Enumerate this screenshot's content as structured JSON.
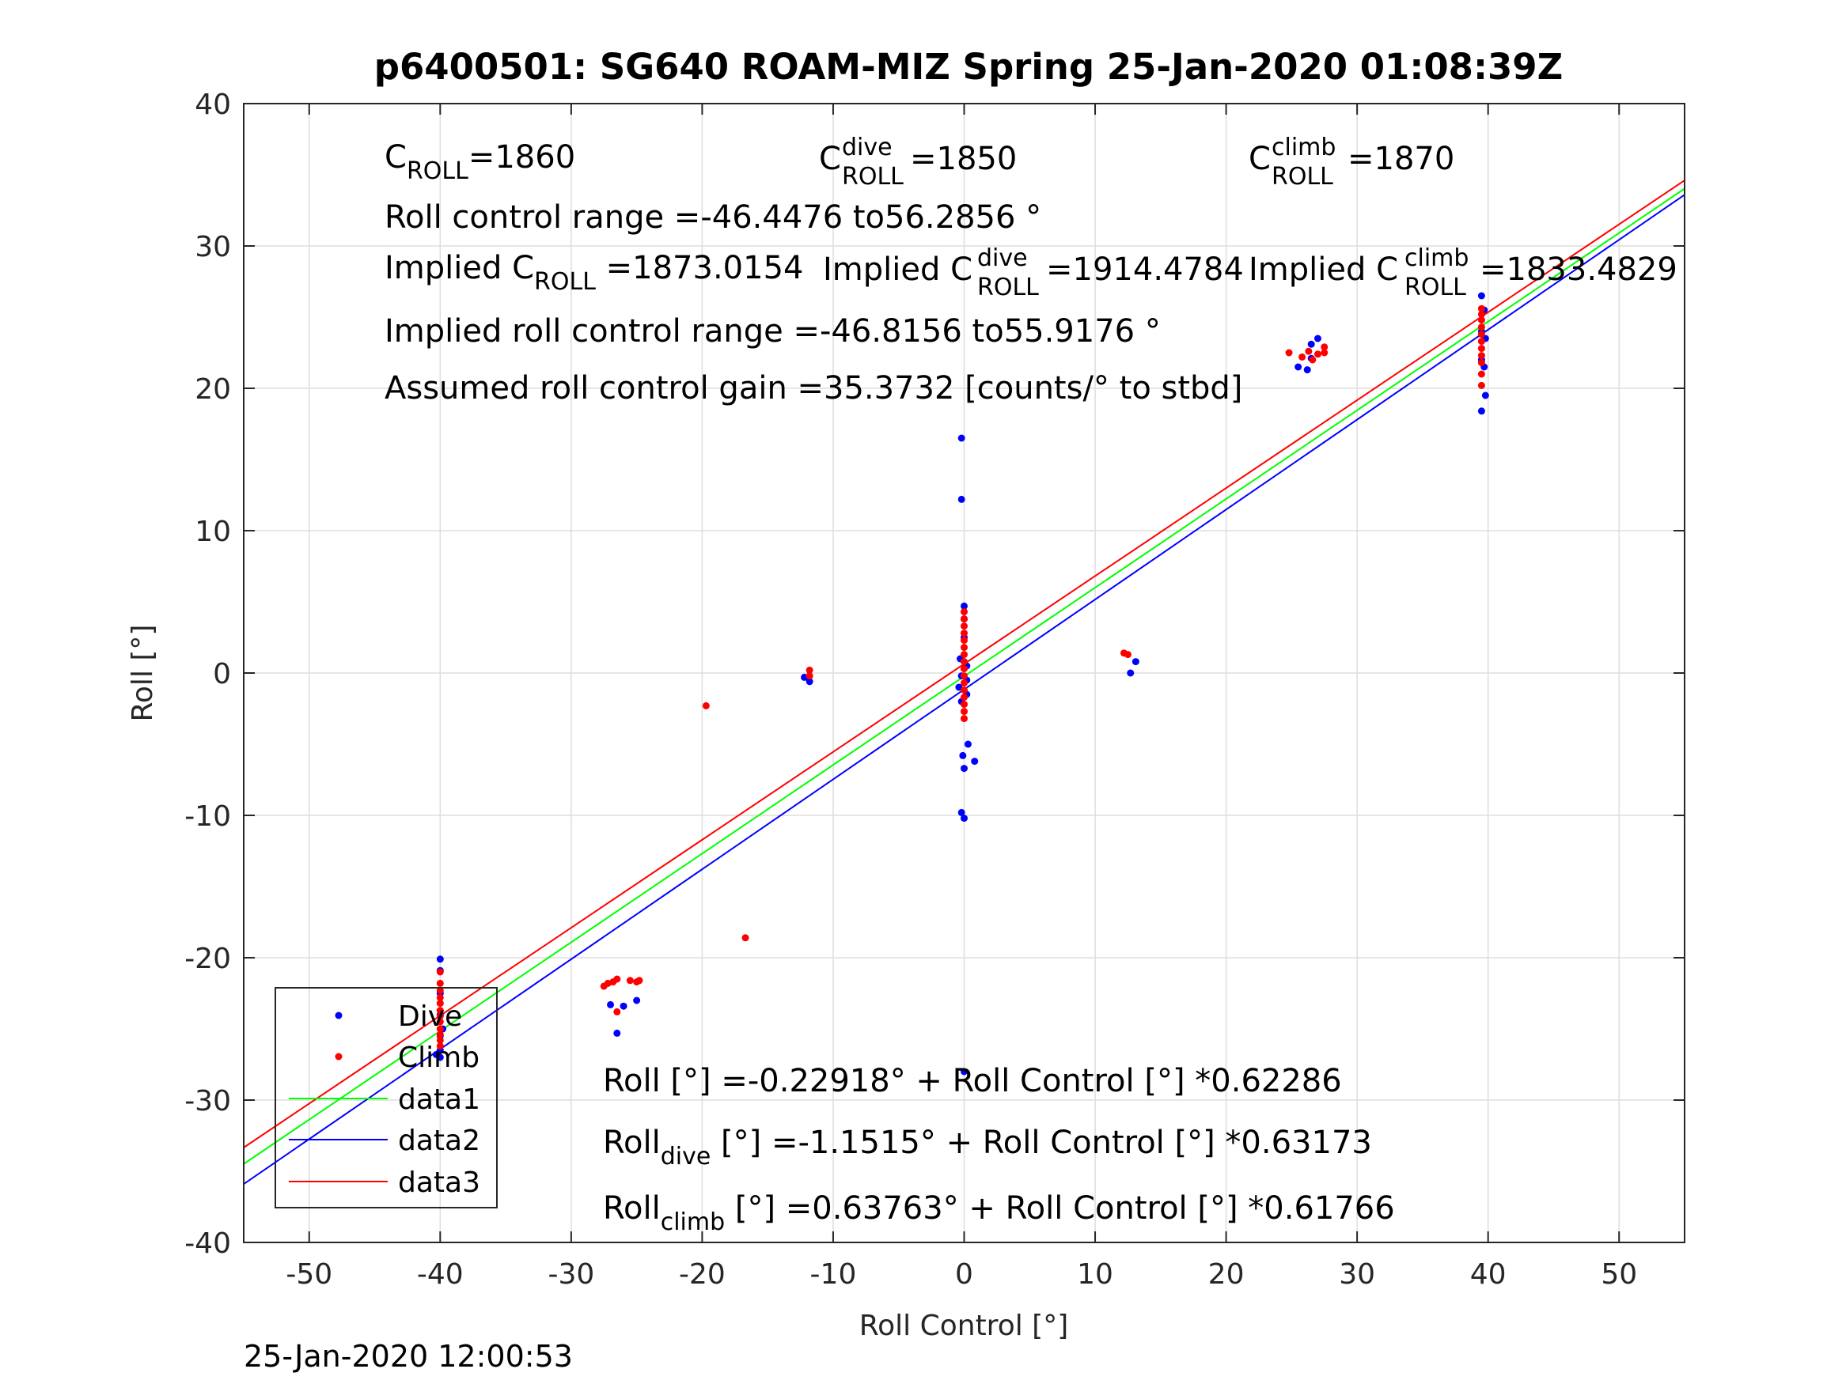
{
  "chart_data": {
    "type": "scatter",
    "title": "p6400501: SG640 ROAM-MIZ Spring 25-Jan-2020 01:08:39Z",
    "xlabel": "Roll Control [°]",
    "ylabel": "Roll [°]",
    "xlim": [
      -55,
      55
    ],
    "ylim": [
      -40,
      40
    ],
    "xticks": [
      -50,
      -40,
      -30,
      -20,
      -10,
      0,
      10,
      20,
      30,
      40,
      50
    ],
    "yticks": [
      -40,
      -30,
      -20,
      -10,
      0,
      10,
      20,
      30,
      40
    ],
    "grid": true,
    "legend_position": "bottom-left",
    "timestamp": "25-Jan-2020 12:00:53",
    "annotations": {
      "c_roll": {
        "base": "C",
        "sub": "ROLL",
        "value": "=1860"
      },
      "c_roll_dive": {
        "base": "C",
        "sup": "dive",
        "sub": "ROLL",
        "value": " =1850"
      },
      "c_roll_climb": {
        "base": "C",
        "sup": "climb",
        "sub": "ROLL",
        "value": " =1870"
      },
      "roll_control_range": "Roll control range =-46.4476 to56.2856 °",
      "implied_c_roll": {
        "prefix": "Implied C",
        "sub": "ROLL",
        "value": " =1873.0154"
      },
      "implied_c_roll_dive": {
        "prefix": "Implied C",
        "sup": "dive",
        "sub": "ROLL",
        "value": " =1914.4784"
      },
      "implied_c_roll_climb": {
        "prefix": "Implied C",
        "sup": "climb",
        "sub": "ROLL",
        "value": " =1833.4829"
      },
      "implied_range": "Implied roll control range =-46.8156 to55.9176 °",
      "gain": "Assumed roll control gain =35.3732 [counts/° to stbd]",
      "fit_all": "Roll [°] =-0.22918° + Roll Control [°] *0.62286",
      "fit_dive": {
        "prefix": "Roll",
        "sub": "dive",
        "rest": " [°] =-1.1515° + Roll Control [°] *0.63173"
      },
      "fit_climb": {
        "prefix": "Roll",
        "sub": "climb",
        "rest": " [°] =0.63763° + Roll Control [°] *0.61766"
      }
    },
    "series": [
      {
        "name": "Dive",
        "kind": "scatter",
        "color": "#0000ff",
        "points": [
          [
            -40,
            -20.1
          ],
          [
            -40,
            -20.9
          ],
          [
            -40,
            -22.5
          ],
          [
            -40,
            -24.0
          ],
          [
            -40,
            -25.5
          ],
          [
            -40,
            -26.5
          ],
          [
            -40,
            -27.0
          ],
          [
            -40.3,
            -26.8
          ],
          [
            -39.8,
            -25.0
          ],
          [
            -27,
            -23.3
          ],
          [
            -26.5,
            -25.3
          ],
          [
            -26,
            -23.4
          ],
          [
            -25,
            -23.0
          ],
          [
            -12.2,
            -0.3
          ],
          [
            -11.8,
            -0.6
          ],
          [
            -0.2,
            16.5
          ],
          [
            -0.2,
            12.2
          ],
          [
            0,
            4.7
          ],
          [
            0,
            3.8
          ],
          [
            0,
            2.5
          ],
          [
            -0.3,
            1.0
          ],
          [
            0.2,
            0.5
          ],
          [
            -0.2,
            -0.2
          ],
          [
            0.2,
            -0.5
          ],
          [
            -0.4,
            -1.0
          ],
          [
            0.2,
            -1.5
          ],
          [
            -0.2,
            -2.0
          ],
          [
            -0.1,
            -5.8
          ],
          [
            0.3,
            -5.0
          ],
          [
            0.8,
            -6.2
          ],
          [
            0,
            -6.7
          ],
          [
            -0.2,
            -9.8
          ],
          [
            0,
            -10.2
          ],
          [
            0,
            -28.0
          ],
          [
            12.7,
            0.0
          ],
          [
            13.1,
            0.8
          ],
          [
            25.5,
            21.5
          ],
          [
            26.2,
            21.3
          ],
          [
            26.5,
            22.1
          ],
          [
            26.5,
            23.1
          ],
          [
            27.0,
            23.5
          ],
          [
            39.5,
            26.5
          ],
          [
            39.7,
            25.5
          ],
          [
            39.5,
            24.0
          ],
          [
            39.8,
            23.5
          ],
          [
            39.5,
            22.0
          ],
          [
            39.7,
            21.5
          ],
          [
            39.8,
            19.5
          ],
          [
            39.5,
            18.4
          ]
        ]
      },
      {
        "name": "Climb",
        "kind": "scatter",
        "color": "#ff0000",
        "points": [
          [
            -40,
            -21.0
          ],
          [
            -40,
            -21.8
          ],
          [
            -40,
            -22.3
          ],
          [
            -40,
            -22.8
          ],
          [
            -40,
            -23.2
          ],
          [
            -40,
            -23.7
          ],
          [
            -40,
            -24.1
          ],
          [
            -40,
            -24.5
          ],
          [
            -40,
            -25.0
          ],
          [
            -40,
            -25.4
          ],
          [
            -40,
            -25.8
          ],
          [
            -40,
            -26.2
          ],
          [
            -27.5,
            -22.0
          ],
          [
            -27.2,
            -21.8
          ],
          [
            -26.8,
            -21.7
          ],
          [
            -26.5,
            -21.5
          ],
          [
            -26.5,
            -23.8
          ],
          [
            -25.5,
            -21.6
          ],
          [
            -25.0,
            -21.7
          ],
          [
            -24.8,
            -21.6
          ],
          [
            -19.7,
            -2.3
          ],
          [
            -16.7,
            -18.6
          ],
          [
            -11.8,
            0.2
          ],
          [
            -11.8,
            -0.2
          ],
          [
            0,
            4.3
          ],
          [
            0,
            3.8
          ],
          [
            0,
            3.3
          ],
          [
            0,
            2.8
          ],
          [
            0,
            2.3
          ],
          [
            0,
            1.8
          ],
          [
            0,
            1.3
          ],
          [
            0,
            0.8
          ],
          [
            0,
            0.3
          ],
          [
            0,
            -0.2
          ],
          [
            0,
            -0.7
          ],
          [
            0,
            -1.2
          ],
          [
            0,
            -1.7
          ],
          [
            0,
            -2.2
          ],
          [
            0,
            -2.7
          ],
          [
            0,
            -3.2
          ],
          [
            12.2,
            1.4
          ],
          [
            12.5,
            1.3
          ],
          [
            24.8,
            22.5
          ],
          [
            25.8,
            22.2
          ],
          [
            26.3,
            22.6
          ],
          [
            26.6,
            22.0
          ],
          [
            27.0,
            22.4
          ],
          [
            27.5,
            22.9
          ],
          [
            27.5,
            22.5
          ],
          [
            39.5,
            25.6
          ],
          [
            39.5,
            25.2
          ],
          [
            39.5,
            24.8
          ],
          [
            39.5,
            24.3
          ],
          [
            39.5,
            23.8
          ],
          [
            39.5,
            23.3
          ],
          [
            39.5,
            22.8
          ],
          [
            39.5,
            22.3
          ],
          [
            39.5,
            21.8
          ],
          [
            39.5,
            21.0
          ],
          [
            39.5,
            20.2
          ]
        ]
      },
      {
        "name": "data1",
        "kind": "line",
        "color": "#00ff00",
        "intercept": -0.22918,
        "slope": 0.62286
      },
      {
        "name": "data2",
        "kind": "line",
        "color": "#0000ff",
        "intercept": -1.1515,
        "slope": 0.63173
      },
      {
        "name": "data3",
        "kind": "line",
        "color": "#ff0000",
        "intercept": 0.63763,
        "slope": 0.61766
      }
    ]
  }
}
